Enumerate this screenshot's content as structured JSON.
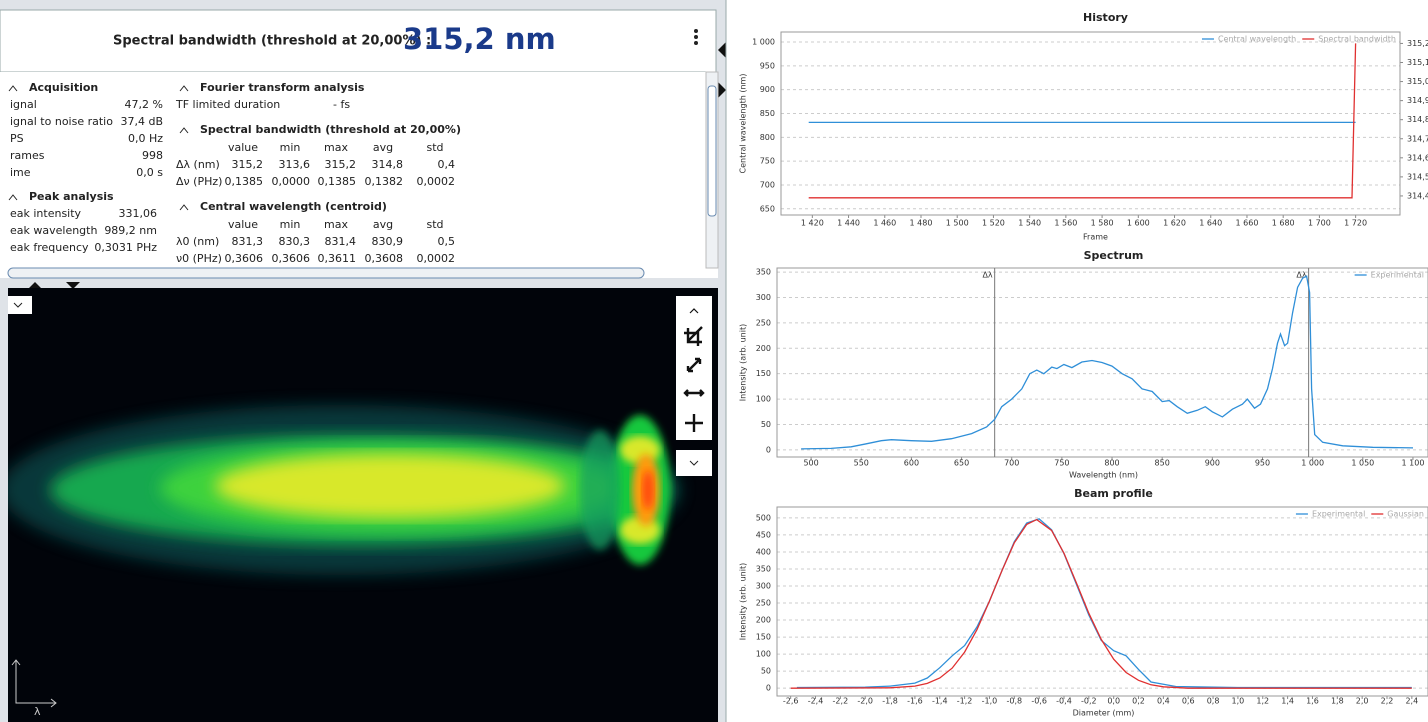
{
  "header": {
    "title": "Spectral bandwidth (threshold at 20,00%) :",
    "value": "315,2 nm"
  },
  "stats": {
    "acquisition": {
      "title": "Acquisition",
      "rows": [
        [
          "ignal",
          "47,2 %"
        ],
        [
          "ignal to noise ratio",
          "37,4 dB"
        ],
        [
          "PS",
          "0,0 Hz"
        ],
        [
          "rames",
          "998"
        ],
        [
          "ime",
          "0,0 s"
        ]
      ]
    },
    "peak_analysis": {
      "title": "Peak analysis",
      "rows": [
        [
          "eak intensity",
          "331,06"
        ],
        [
          "eak wavelength",
          "989,2 nm"
        ],
        [
          "eak frequency",
          "0,3031 PHz"
        ]
      ]
    },
    "fourier": {
      "title": "Fourier transform analysis",
      "rows": [
        [
          "TF limited duration",
          "- fs"
        ]
      ]
    },
    "bandwidth": {
      "title": "Spectral bandwidth (threshold at 20,00%)",
      "columns": [
        "value",
        "min",
        "max",
        "avg",
        "std"
      ],
      "rows": [
        [
          "Δλ (nm)",
          "315,2",
          "313,6",
          "315,2",
          "314,8",
          "0,4"
        ],
        [
          "Δν (PHz)",
          "0,1385",
          "0,0000",
          "0,1385",
          "0,1382",
          "0,0002"
        ]
      ]
    },
    "centroid": {
      "title": "Central wavelength (centroid)",
      "columns": [
        "value",
        "min",
        "max",
        "avg",
        "std"
      ],
      "rows": [
        [
          "λ0 (nm)",
          "831,3",
          "830,3",
          "831,4",
          "830,9",
          "0,5"
        ],
        [
          "ν0 (PHz)",
          "0,3606",
          "0,3606",
          "0,3611",
          "0,3608",
          "0,0002"
        ]
      ]
    }
  },
  "image": {
    "axis_label": "λ"
  },
  "chart_data": [
    {
      "type": "line",
      "title": "History",
      "x_label": "Frame",
      "y_label": "Central wavelength (nm)",
      "xlim": [
        1402.7,
        1744.5
      ],
      "ylim": [
        637,
        1021
      ],
      "y2lim": [
        314.3,
        315.26
      ],
      "xticks": [
        {
          "value": 1420,
          "label": "1 420"
        },
        {
          "value": 1440,
          "label": "1 440"
        },
        {
          "value": 1460,
          "label": "1 460"
        },
        {
          "value": 1480,
          "label": "1 480"
        },
        {
          "value": 1500,
          "label": "1 500"
        },
        {
          "value": 1520,
          "label": "1 520"
        },
        {
          "value": 1540,
          "label": "1 540"
        },
        {
          "value": 1560,
          "label": "1 560"
        },
        {
          "value": 1580,
          "label": "1 580"
        },
        {
          "value": 1600,
          "label": "1 600"
        },
        {
          "value": 1620,
          "label": "1 620"
        },
        {
          "value": 1640,
          "label": "1 640"
        },
        {
          "value": 1660,
          "label": "1 660"
        },
        {
          "value": 1680,
          "label": "1 680"
        },
        {
          "value": 1700,
          "label": "1 700"
        },
        {
          "value": 1720,
          "label": "1 720"
        }
      ],
      "yticks": [
        650,
        700,
        750,
        800,
        850,
        900,
        950,
        {
          "value": 1000,
          "label": "1 000"
        }
      ],
      "y2ticks": [
        {
          "value": 314.4,
          "label": "314,4"
        },
        {
          "value": 314.5,
          "label": "314,5"
        },
        {
          "value": 314.6,
          "label": "314,6"
        },
        {
          "value": 314.7,
          "label": "314,7"
        },
        {
          "value": 314.8,
          "label": "314,8"
        },
        {
          "value": 314.9,
          "label": "314,9"
        },
        {
          "value": 315.0,
          "label": "315,0"
        },
        {
          "value": 315.1,
          "label": "315,1"
        },
        {
          "value": 315.2,
          "label": "315,2"
        }
      ],
      "grid": true,
      "legend": "upper right",
      "series": [
        {
          "name": "Central wavelength",
          "color": "#2f8fd8",
          "x": [
            1418,
            1720
          ],
          "values": [
            831.3,
            831.3
          ]
        },
        {
          "name": "Spectral bandwidth",
          "color": "#e03030",
          "axis": "y2",
          "x": [
            1418,
            1718,
            1720
          ],
          "values": [
            314.39,
            314.39,
            315.2
          ]
        }
      ]
    },
    {
      "type": "line",
      "title": "Spectrum",
      "x_label": "Wavelength (nm)",
      "y_label": "Intensity (arb. unit)",
      "xlim": [
        466,
        1115
      ],
      "ylim": [
        -14,
        358
      ],
      "xticks": [
        500,
        550,
        600,
        650,
        700,
        750,
        800,
        850,
        900,
        950,
        {
          "value": 1000,
          "label": "1 000"
        },
        {
          "value": 1050,
          "label": "1 050"
        },
        {
          "value": 1100,
          "label": "1 100"
        }
      ],
      "yticks": [
        0,
        50,
        100,
        150,
        200,
        250,
        300,
        350
      ],
      "grid": true,
      "legend": "upper right",
      "annotations": [
        {
          "text": "Δλ",
          "x": 683
        },
        {
          "text": "Δλ",
          "x": 996
        }
      ],
      "series": [
        {
          "name": "Experimental",
          "color": "#2f8fd8",
          "x": [
            490,
            520,
            540,
            555,
            570,
            580,
            600,
            620,
            640,
            660,
            675,
            683,
            690,
            700,
            710,
            718,
            725,
            732,
            740,
            745,
            752,
            760,
            770,
            780,
            790,
            800,
            810,
            820,
            830,
            840,
            850,
            857,
            865,
            875,
            885,
            893,
            900,
            910,
            920,
            930,
            935,
            942,
            948,
            955,
            960,
            965,
            968,
            972,
            975,
            980,
            985,
            990,
            994,
            997,
            999,
            1002,
            1010,
            1030,
            1060,
            1100
          ],
          "values": [
            2,
            3,
            6,
            12,
            18,
            20,
            18,
            17,
            22,
            32,
            45,
            60,
            85,
            100,
            120,
            150,
            157,
            150,
            163,
            160,
            168,
            162,
            173,
            176,
            172,
            165,
            150,
            140,
            120,
            115,
            95,
            97,
            85,
            72,
            78,
            85,
            75,
            65,
            80,
            90,
            100,
            82,
            90,
            120,
            160,
            210,
            228,
            205,
            210,
            270,
            320,
            338,
            342,
            310,
            120,
            30,
            15,
            8,
            5,
            4
          ]
        }
      ]
    },
    {
      "type": "line",
      "title": "Beam profile",
      "x_label": "Diameter (mm)",
      "y_label": "Intensity (arb. unit)",
      "xlim": [
        -2.71,
        2.53
      ],
      "ylim": [
        -23,
        532
      ],
      "xticks": [
        {
          "value": -2.6,
          "label": "-2,6"
        },
        {
          "value": -2.4,
          "label": "-2,4"
        },
        {
          "value": -2.2,
          "label": "-2,2"
        },
        {
          "value": -2.0,
          "label": "-2,0"
        },
        {
          "value": -1.8,
          "label": "-1,8"
        },
        {
          "value": -1.6,
          "label": "-1,6"
        },
        {
          "value": -1.4,
          "label": "-1,4"
        },
        {
          "value": -1.2,
          "label": "-1,2"
        },
        {
          "value": -1.0,
          "label": "-1,0"
        },
        {
          "value": -0.8,
          "label": "-0,8"
        },
        {
          "value": -0.6,
          "label": "-0,6"
        },
        {
          "value": -0.4,
          "label": "-0,4"
        },
        {
          "value": -0.2,
          "label": "-0,2"
        },
        {
          "value": 0,
          "label": "0,0"
        },
        {
          "value": 0.2,
          "label": "0,2"
        },
        {
          "value": 0.4,
          "label": "0,4"
        },
        {
          "value": 0.6,
          "label": "0,6"
        },
        {
          "value": 0.8,
          "label": "0,8"
        },
        {
          "value": 1.0,
          "label": "1,0"
        },
        {
          "value": 1.2,
          "label": "1,2"
        },
        {
          "value": 1.4,
          "label": "1,4"
        },
        {
          "value": 1.6,
          "label": "1,6"
        },
        {
          "value": 1.8,
          "label": "1,8"
        },
        {
          "value": 2.0,
          "label": "2,0"
        },
        {
          "value": 2.2,
          "label": "2,2"
        },
        {
          "value": 2.4,
          "label": "2,4"
        }
      ],
      "yticks": [
        0,
        50,
        100,
        150,
        200,
        250,
        300,
        350,
        400,
        450,
        500
      ],
      "grid": true,
      "legend": "upper right",
      "series": [
        {
          "name": "Experimental",
          "color": "#2f8fd8",
          "x": [
            -2.55,
            -2.0,
            -1.8,
            -1.6,
            -1.5,
            -1.4,
            -1.3,
            -1.2,
            -1.1,
            -1.0,
            -0.9,
            -0.8,
            -0.7,
            -0.6,
            -0.5,
            -0.4,
            -0.3,
            -0.2,
            -0.1,
            0.0,
            0.1,
            0.2,
            0.3,
            0.5,
            1.0,
            2.4
          ],
          "values": [
            2,
            3,
            6,
            15,
            30,
            60,
            95,
            125,
            180,
            255,
            345,
            430,
            485,
            497,
            465,
            395,
            305,
            215,
            140,
            110,
            95,
            55,
            18,
            5,
            2,
            2
          ]
        },
        {
          "name": "Gaussian",
          "color": "#e03030",
          "x": [
            -2.6,
            -1.8,
            -1.6,
            -1.5,
            -1.4,
            -1.3,
            -1.2,
            -1.1,
            -1.0,
            -0.9,
            -0.8,
            -0.7,
            -0.62,
            -0.5,
            -0.4,
            -0.3,
            -0.2,
            -0.1,
            0.0,
            0.1,
            0.2,
            0.3,
            0.4,
            0.6,
            2.4
          ],
          "values": [
            0,
            1,
            6,
            14,
            30,
            59,
            106,
            172,
            255,
            345,
            427,
            481,
            495,
            463,
            396,
            309,
            220,
            143,
            85,
            46,
            23,
            10,
            4,
            0,
            0
          ]
        }
      ]
    }
  ]
}
